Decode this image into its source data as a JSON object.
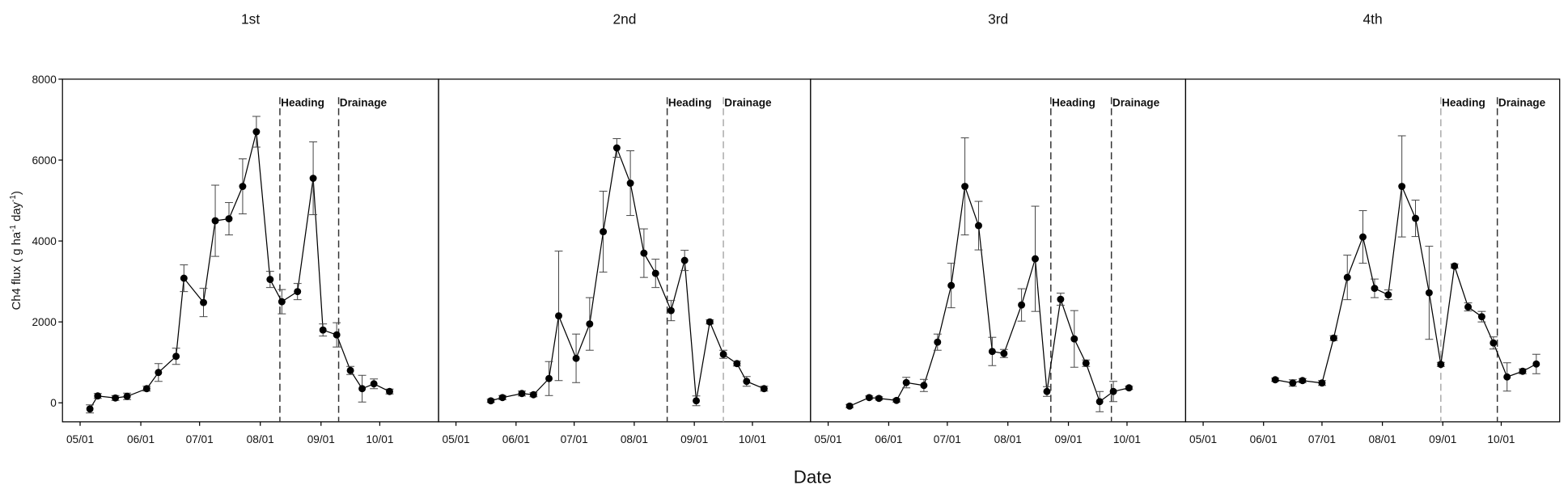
{
  "chart_data": [
    {
      "type": "line",
      "title": "1st",
      "ylabel": [
        "Ch4 flux ( g ha",
        "-1",
        " day",
        "-1",
        ")"
      ],
      "xlabel": "Date",
      "xlim": [
        112,
        304
      ],
      "ylim": [
        -470,
        8000
      ],
      "xticks": [
        {
          "value": 121,
          "label": "05/01"
        },
        {
          "value": 152,
          "label": "06/01"
        },
        {
          "value": 182,
          "label": "07/01"
        },
        {
          "value": 213,
          "label": "08/01"
        },
        {
          "value": 244,
          "label": "09/01"
        },
        {
          "value": 274,
          "label": "10/01"
        }
      ],
      "yticks": [
        0,
        2000,
        4000,
        6000,
        8000
      ],
      "series": [
        {
          "color": "#000000",
          "x": [
            126,
            130,
            139,
            145,
            155,
            161,
            170,
            174,
            184,
            190,
            197,
            204,
            211,
            218,
            224,
            232,
            240,
            245,
            252,
            259,
            265,
            271,
            279
          ],
          "values": [
            -150,
            170,
            120,
            160,
            350,
            750,
            1150,
            3080,
            2480,
            4500,
            4550,
            5350,
            6700,
            3050,
            2500,
            2750,
            5550,
            1800,
            1680,
            800,
            350,
            470,
            280
          ],
          "errors": [
            100,
            60,
            60,
            80,
            60,
            220,
            200,
            330,
            350,
            880,
            400,
            680,
            380,
            200,
            300,
            200,
            900,
            150,
            300,
            100,
            330,
            120,
            60
          ]
        }
      ],
      "annotations": [
        {
          "label": "Heading",
          "x": 223,
          "color": "#333333"
        },
        {
          "label": "Drainage",
          "x": 253,
          "color": "#333333"
        }
      ]
    },
    {
      "type": "line",
      "title": "2nd",
      "xlim": [
        112,
        304
      ],
      "ylim": [
        -470,
        8000
      ],
      "xticks": [
        {
          "value": 121,
          "label": "05/01"
        },
        {
          "value": 152,
          "label": "06/01"
        },
        {
          "value": 182,
          "label": "07/01"
        },
        {
          "value": 213,
          "label": "08/01"
        },
        {
          "value": 244,
          "label": "09/01"
        },
        {
          "value": 274,
          "label": "10/01"
        }
      ],
      "series": [
        {
          "color": "#000000",
          "x": [
            139,
            145,
            155,
            161,
            169,
            174,
            183,
            190,
            197,
            204,
            211,
            218,
            224,
            232,
            239,
            245,
            252,
            259,
            266,
            271,
            280
          ],
          "values": [
            50,
            130,
            230,
            200,
            600,
            2150,
            1100,
            1950,
            4230,
            6300,
            5430,
            3700,
            3200,
            2280,
            3520,
            50,
            2000,
            1200,
            970,
            530,
            350
          ],
          "errors": [
            40,
            50,
            60,
            50,
            420,
            1600,
            600,
            650,
            1000,
            230,
            800,
            600,
            350,
            250,
            250,
            120,
            50,
            100,
            60,
            120,
            60
          ]
        }
      ],
      "annotations": [
        {
          "label": "Heading",
          "x": 230,
          "color": "#333333"
        },
        {
          "label": "Drainage",
          "x": 259,
          "color": "#aaaaaa"
        }
      ]
    },
    {
      "type": "line",
      "title": "3rd",
      "xlim": [
        112,
        304
      ],
      "ylim": [
        -470,
        8000
      ],
      "xticks": [
        {
          "value": 121,
          "label": "05/01"
        },
        {
          "value": 152,
          "label": "06/01"
        },
        {
          "value": 182,
          "label": "07/01"
        },
        {
          "value": 213,
          "label": "08/01"
        },
        {
          "value": 244,
          "label": "09/01"
        },
        {
          "value": 274,
          "label": "10/01"
        }
      ],
      "series": [
        {
          "color": "#000000",
          "x": [
            132,
            142,
            147,
            156,
            161,
            170,
            177,
            184,
            191,
            198,
            205,
            211,
            220,
            227,
            233,
            240,
            247,
            253,
            260,
            267,
            275
          ],
          "values": [
            -80,
            130,
            110,
            60,
            500,
            430,
            1500,
            2900,
            5350,
            4380,
            1270,
            1220,
            2420,
            3560,
            280,
            2560,
            1580,
            980,
            30,
            280,
            370
          ],
          "errors": [
            40,
            40,
            40,
            40,
            130,
            150,
            200,
            550,
            1200,
            600,
            350,
            100,
            400,
            1300,
            120,
            150,
            700,
            80,
            250,
            250,
            40
          ]
        }
      ],
      "annotations": [
        {
          "label": "Heading",
          "x": 235,
          "color": "#333333"
        },
        {
          "label": "Drainage",
          "x": 266,
          "color": "#333333"
        }
      ]
    },
    {
      "type": "line",
      "title": "4th",
      "xlim": [
        112,
        304
      ],
      "ylim": [
        -470,
        8000
      ],
      "xticks": [
        {
          "value": 121,
          "label": "05/01"
        },
        {
          "value": 152,
          "label": "06/01"
        },
        {
          "value": 182,
          "label": "07/01"
        },
        {
          "value": 213,
          "label": "08/01"
        },
        {
          "value": 244,
          "label": "09/01"
        },
        {
          "value": 274,
          "label": "10/01"
        }
      ],
      "series": [
        {
          "color": "#000000",
          "x": [
            158,
            167,
            172,
            182,
            188,
            195,
            203,
            209,
            216,
            223,
            230,
            237,
            243,
            250,
            257,
            264,
            270,
            277,
            285,
            292
          ],
          "values": [
            570,
            490,
            550,
            490,
            1600,
            3100,
            4100,
            2830,
            2670,
            5350,
            4560,
            2720,
            950,
            3380,
            2370,
            2130,
            1480,
            640,
            780,
            960
          ],
          "errors": [
            40,
            80,
            50,
            60,
            60,
            550,
            650,
            230,
            120,
            1250,
            450,
            1150,
            50,
            50,
            100,
            130,
            150,
            350,
            60,
            240
          ]
        }
      ],
      "annotations": [
        {
          "label": "Heading",
          "x": 243,
          "color": "#aaaaaa"
        },
        {
          "label": "Drainage",
          "x": 272,
          "color": "#333333"
        }
      ]
    }
  ]
}
